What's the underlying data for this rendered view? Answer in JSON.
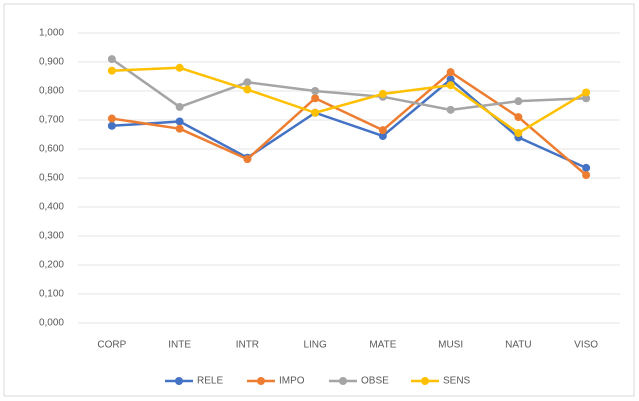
{
  "chart_data": {
    "type": "line",
    "categories": [
      "CORP",
      "INTE",
      "INTR",
      "LING",
      "MATE",
      "MUSI",
      "NATU",
      "VISO"
    ],
    "series": [
      {
        "name": "RELE",
        "color": "#4472c4",
        "values": [
          0.68,
          0.695,
          0.57,
          0.725,
          0.645,
          0.84,
          0.64,
          0.535
        ]
      },
      {
        "name": "IMPO",
        "color": "#ed7d31",
        "values": [
          0.705,
          0.67,
          0.565,
          0.775,
          0.665,
          0.865,
          0.71,
          0.51
        ]
      },
      {
        "name": "OBSE",
        "color": "#a5a5a5",
        "values": [
          0.91,
          0.745,
          0.83,
          0.8,
          0.78,
          0.735,
          0.765,
          0.775
        ]
      },
      {
        "name": "SENS",
        "color": "#ffc000",
        "values": [
          0.87,
          0.88,
          0.805,
          0.725,
          0.79,
          0.82,
          0.655,
          0.795
        ]
      }
    ],
    "ylim": [
      0,
      1
    ],
    "yticks": [
      {
        "value": 0,
        "label": "0,000"
      },
      {
        "value": 0.1,
        "label": "0,100"
      },
      {
        "value": 0.2,
        "label": "0,200"
      },
      {
        "value": 0.3,
        "label": "0,300"
      },
      {
        "value": 0.4,
        "label": "0,400"
      },
      {
        "value": 0.5,
        "label": "0,500"
      },
      {
        "value": 0.6,
        "label": "0,600"
      },
      {
        "value": 0.7,
        "label": "0,700"
      },
      {
        "value": 0.8,
        "label": "0,800"
      },
      {
        "value": 0.9,
        "label": "0,900"
      },
      {
        "value": 1,
        "label": "1,000"
      }
    ],
    "grid": true,
    "legend": "bottom"
  }
}
